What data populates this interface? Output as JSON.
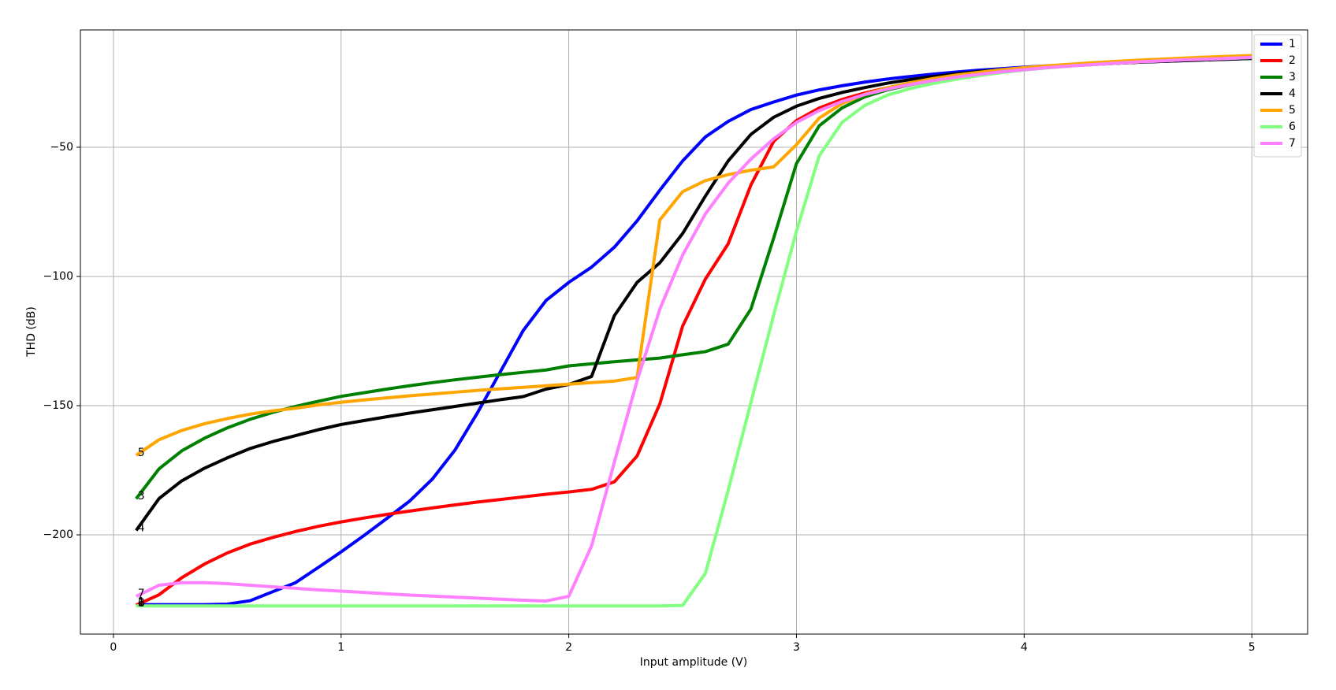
{
  "chart_data": {
    "type": "line",
    "xlabel": "Input amplitude (V)",
    "ylabel": "THD (dB)",
    "x": [
      0.1,
      0.2,
      0.3,
      0.4,
      0.5,
      0.6,
      0.7,
      0.8,
      0.9,
      1.0,
      1.1,
      1.2,
      1.3,
      1.4,
      1.5,
      1.6,
      1.7,
      1.8,
      1.9,
      2.0,
      2.1,
      2.2,
      2.3,
      2.4,
      2.5,
      2.6,
      2.7,
      2.8,
      2.9,
      3.0,
      3.1,
      3.2,
      3.3,
      3.4,
      3.5,
      3.6,
      3.7,
      3.8,
      3.9,
      4.0,
      4.1,
      4.2,
      4.3,
      4.4,
      4.5,
      4.6,
      4.7,
      4.8,
      4.9,
      5.0
    ],
    "series": [
      {
        "name": "1",
        "color": "#0000ff",
        "values": [
          -227,
          -227,
          -227,
          -227,
          -226.8,
          -225.5,
          -222,
          -218.5,
          -212.6,
          -206.6,
          -200.3,
          -193.7,
          -187,
          -178.5,
          -167.2,
          -152.6,
          -136.8,
          -120.9,
          -109.3,
          -102.3,
          -96.4,
          -88.7,
          -78.5,
          -66.6,
          -55.3,
          -46,
          -40,
          -35.4,
          -32.5,
          -29.8,
          -27.8,
          -26.2,
          -24.8,
          -23.6,
          -22.6,
          -21.7,
          -20.9,
          -20.2,
          -19.6,
          -19.0,
          -18.5,
          -18.1,
          -17.7,
          -17.4,
          -17.1,
          -16.8,
          -16.5,
          -16.2,
          -15.9,
          -15.6
        ]
      },
      {
        "name": "2",
        "color": "#ff0000",
        "values": [
          -227.2,
          -223.2,
          -216.6,
          -211.3,
          -207,
          -203.6,
          -201,
          -198.7,
          -196.7,
          -195,
          -193.5,
          -192.1,
          -190.8,
          -189.6,
          -188.4,
          -187.3,
          -186.3,
          -185.3,
          -184.3,
          -183.4,
          -182.4,
          -179.5,
          -169.5,
          -149.3,
          -119.2,
          -101,
          -87.4,
          -64.6,
          -47.7,
          -39.7,
          -34.8,
          -31.5,
          -29,
          -27,
          -25.4,
          -24,
          -22.8,
          -21.7,
          -20.7,
          -19.8,
          -19.1,
          -18.5,
          -18,
          -17.5,
          -17.1,
          -16.7,
          -16.4,
          -16.1,
          -15.8,
          -15.5
        ]
      },
      {
        "name": "3",
        "color": "#008000",
        "values": [
          -186,
          -174.5,
          -167.5,
          -162.6,
          -158.6,
          -155.3,
          -152.6,
          -150.3,
          -148.3,
          -146.4,
          -145,
          -143.6,
          -142.3,
          -141.1,
          -140,
          -139,
          -138,
          -137.1,
          -136.2,
          -134.6,
          -133.8,
          -133,
          -132.3,
          -131.6,
          -130.3,
          -129.1,
          -126.2,
          -112.6,
          -85.1,
          -56.3,
          -41.7,
          -34.8,
          -30.5,
          -27.8,
          -25.8,
          -24.2,
          -22.8,
          -21.7,
          -20.7,
          -19.8,
          -19.1,
          -18.5,
          -18,
          -17.5,
          -17.1,
          -16.7,
          -16.4,
          -16.1,
          -15.8,
          -15.5
        ]
      },
      {
        "name": "4",
        "color": "#000000",
        "values": [
          -198.3,
          -186,
          -179.1,
          -174.2,
          -170.2,
          -166.6,
          -163.9,
          -161.6,
          -159.3,
          -157.3,
          -155.8,
          -154.3,
          -152.9,
          -151.6,
          -150.3,
          -149,
          -147.7,
          -146.5,
          -143.6,
          -141.8,
          -138.7,
          -115.2,
          -102.3,
          -94.7,
          -83.4,
          -68.9,
          -55.3,
          -45,
          -38.4,
          -34.1,
          -31.1,
          -28.8,
          -26.9,
          -25.2,
          -23.8,
          -22.6,
          -21.6,
          -20.7,
          -20,
          -19.4,
          -18.9,
          -18.4,
          -17.9,
          -17.5,
          -17.1,
          -16.8,
          -16.5,
          -16.2,
          -15.9,
          -15.6
        ]
      },
      {
        "name": "5",
        "color": "#ffa500",
        "values": [
          -169.2,
          -163.2,
          -159.6,
          -157,
          -155,
          -153.3,
          -152,
          -151,
          -149.7,
          -148.7,
          -147.8,
          -147,
          -146.2,
          -145.5,
          -144.8,
          -144.1,
          -143.5,
          -142.9,
          -142.3,
          -141.7,
          -141.1,
          -140.5,
          -139.1,
          -78.1,
          -67.2,
          -62.9,
          -60.6,
          -58.9,
          -57.6,
          -49,
          -38.7,
          -33.1,
          -29.5,
          -27,
          -25,
          -23.4,
          -22.1,
          -21,
          -20,
          -19.2,
          -18.5,
          -17.9,
          -17.3,
          -16.8,
          -16.3,
          -15.9,
          -15.5,
          -15.1,
          -14.8,
          -14.5
        ]
      },
      {
        "name": "6",
        "color": "#80ff80",
        "values": [
          -227.5,
          -227.5,
          -227.5,
          -227.5,
          -227.5,
          -227.5,
          -227.5,
          -227.5,
          -227.5,
          -227.5,
          -227.5,
          -227.5,
          -227.5,
          -227.5,
          -227.5,
          -227.5,
          -227.5,
          -227.5,
          -227.5,
          -227.5,
          -227.5,
          -227.5,
          -227.5,
          -227.5,
          -227.3,
          -214.9,
          -182.8,
          -148.7,
          -114.9,
          -82.5,
          -53.3,
          -40.4,
          -33.8,
          -29.8,
          -27.3,
          -25.3,
          -23.7,
          -22.3,
          -21.1,
          -20.1,
          -19.3,
          -18.6,
          -18,
          -17.5,
          -17,
          -16.6,
          -16.2,
          -15.9,
          -15.6,
          -15.3
        ]
      },
      {
        "name": "7",
        "color": "#ff80ff",
        "values": [
          -223.8,
          -219.5,
          -218.5,
          -218.5,
          -218.9,
          -219.5,
          -220.1,
          -220.7,
          -221.3,
          -221.8,
          -222.3,
          -222.8,
          -223.3,
          -223.7,
          -224.1,
          -224.5,
          -224.9,
          -225.3,
          -225.6,
          -223.8,
          -204.3,
          -171.9,
          -140.4,
          -112.6,
          -91.7,
          -75.8,
          -63.9,
          -54.6,
          -46.7,
          -40.4,
          -35.8,
          -32.3,
          -29.6,
          -27.5,
          -25.7,
          -24.2,
          -22.9,
          -21.8,
          -20.8,
          -20,
          -19.2,
          -18.6,
          -18,
          -17.5,
          -17,
          -16.6,
          -16.2,
          -15.9,
          -15.6,
          -15.2
        ]
      }
    ],
    "annotations": [
      {
        "text": "5",
        "x": 0.1,
        "y": -169.2
      },
      {
        "text": "3",
        "x": 0.1,
        "y": -186
      },
      {
        "text": "4",
        "x": 0.1,
        "y": -198.3
      },
      {
        "text": "7",
        "x": 0.1,
        "y": -223.8
      },
      {
        "text": "6",
        "x": 0.1,
        "y": -227.5
      },
      {
        "text": "2",
        "x": 0.1,
        "y": -227.2
      },
      {
        "text": "1",
        "x": 0.1,
        "y": -227
      }
    ],
    "xlim": [
      -0.145,
      5.245
    ],
    "ylim": [
      -238.4,
      -4.6
    ],
    "xticks": [
      0,
      1,
      2,
      3,
      4,
      5
    ],
    "yticks": [
      {
        "value": -50,
        "label": "−50"
      },
      {
        "value": -100,
        "label": "−100"
      },
      {
        "value": -150,
        "label": "−150"
      },
      {
        "value": -200,
        "label": "−200"
      }
    ],
    "grid": true,
    "legend": "upper right"
  }
}
